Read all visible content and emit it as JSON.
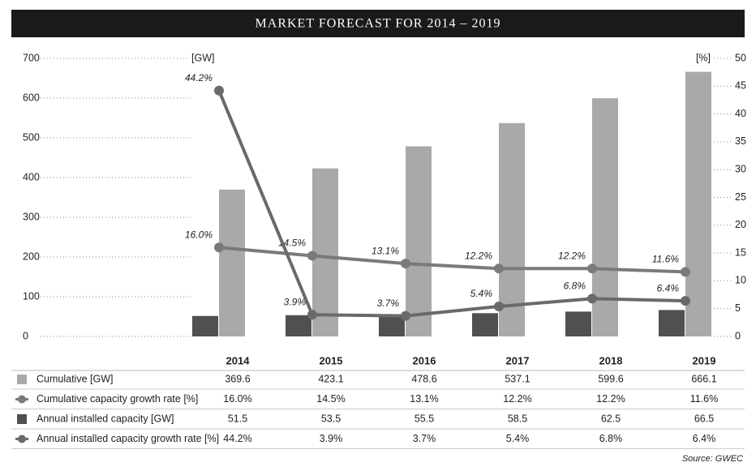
{
  "chart_data": {
    "type": "bar-line",
    "title": "MARKET FORECAST FOR 2014 – 2019",
    "y_label": "[GW]",
    "y2_label": "[%]",
    "source": "Source: GWEC",
    "categories": [
      "2014",
      "2015",
      "2016",
      "2017",
      "2018",
      "2019"
    ],
    "ylim": [
      0,
      700
    ],
    "yticks": [
      0,
      100,
      200,
      300,
      400,
      500,
      600,
      700
    ],
    "y2lim": [
      0,
      50
    ],
    "y2ticks": [
      0,
      5,
      10,
      15,
      20,
      25,
      30,
      35,
      40,
      45,
      50
    ],
    "series": [
      {
        "name": "Cumulative [GW]",
        "type": "bar",
        "color": "#a9a9a9",
        "values": [
          369.6,
          423.1,
          478.6,
          537.1,
          599.6,
          666.1
        ]
      },
      {
        "name": "Cumulative capacity growth rate [%]",
        "type": "line",
        "axis": "y2",
        "color": "#7a7a7a",
        "values": [
          16.0,
          14.5,
          13.1,
          12.2,
          12.2,
          11.6
        ],
        "value_labels": [
          "16.0%",
          "14.5%",
          "13.1%",
          "12.2%",
          "12.2%",
          "11.6%"
        ]
      },
      {
        "name": "Annual installed capacity [GW]",
        "type": "bar",
        "color": "#505050",
        "values": [
          51.5,
          53.5,
          55.5,
          58.5,
          62.5,
          66.5
        ]
      },
      {
        "name": "Annual installed capacity growth rate [%]",
        "type": "line",
        "axis": "y2",
        "color": "#6a6a6a",
        "values": [
          44.2,
          3.9,
          3.7,
          5.4,
          6.8,
          6.4
        ],
        "value_labels": [
          "44.2%",
          "3.9%",
          "3.7%",
          "5.4%",
          "6.8%",
          "6.4%"
        ]
      }
    ]
  }
}
